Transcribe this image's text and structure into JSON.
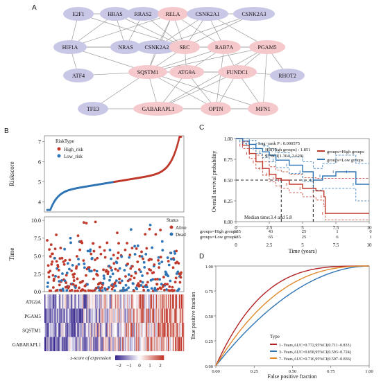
{
  "panel_labels": {
    "a": "A",
    "b": "B",
    "c": "C",
    "d": "D"
  },
  "network": {
    "colors": {
      "lavender": "#c9c7e6",
      "pink": "#f5c8cc",
      "edge": "#9a9a9a"
    },
    "nodes": [
      {
        "id": "E2F1",
        "label": "E2F1",
        "color": "lavender"
      },
      {
        "id": "HRAS",
        "label": "HRAS",
        "color": "lavender"
      },
      {
        "id": "RRAS2",
        "label": "RRAS2",
        "color": "lavender"
      },
      {
        "id": "RELA",
        "label": "RELA",
        "color": "pink"
      },
      {
        "id": "CSNK2A1",
        "label": "CSNK2A1",
        "color": "lavender"
      },
      {
        "id": "CSNK2A3",
        "label": "CSNK2A3",
        "color": "lavender"
      },
      {
        "id": "HIF1A",
        "label": "HIF1A",
        "color": "lavender"
      },
      {
        "id": "NRAS",
        "label": "NRAS",
        "color": "lavender"
      },
      {
        "id": "CSNK2A2",
        "label": "CSNK2A2",
        "color": "lavender"
      },
      {
        "id": "SRC",
        "label": "SRC",
        "color": "pink"
      },
      {
        "id": "RAB7A",
        "label": "RAB7A",
        "color": "pink"
      },
      {
        "id": "PGAM5",
        "label": "PGAM5",
        "color": "pink"
      },
      {
        "id": "ATF4",
        "label": "ATF4",
        "color": "lavender"
      },
      {
        "id": "SQSTM1",
        "label": "SQSTM1",
        "color": "pink"
      },
      {
        "id": "ATG9A",
        "label": "ATG9A",
        "color": "pink"
      },
      {
        "id": "FUNDC1",
        "label": "FUNDC1",
        "color": "pink"
      },
      {
        "id": "RHOT2",
        "label": "RHOT2",
        "color": "lavender"
      },
      {
        "id": "TFE3",
        "label": "TFE3",
        "color": "lavender"
      },
      {
        "id": "GABARAPL1",
        "label": "GABARAPL1",
        "color": "pink"
      },
      {
        "id": "OPTN",
        "label": "OPTN",
        "color": "pink"
      },
      {
        "id": "MFN1",
        "label": "MFN1",
        "color": "pink"
      }
    ],
    "edges": [
      [
        "E2F1",
        "HIF1A"
      ],
      [
        "E2F1",
        "RELA"
      ],
      [
        "E2F1",
        "SRC"
      ],
      [
        "HRAS",
        "RRAS2"
      ],
      [
        "HRAS",
        "NRAS"
      ],
      [
        "HRAS",
        "SRC"
      ],
      [
        "HRAS",
        "RELA"
      ],
      [
        "HRAS",
        "HIF1A"
      ],
      [
        "RRAS2",
        "SRC"
      ],
      [
        "RRAS2",
        "NRAS"
      ],
      [
        "RELA",
        "CSNK2A1"
      ],
      [
        "RELA",
        "CSNK2A2"
      ],
      [
        "RELA",
        "SRC"
      ],
      [
        "RELA",
        "SQSTM1"
      ],
      [
        "RELA",
        "HIF1A"
      ],
      [
        "RELA",
        "RAB7A"
      ],
      [
        "CSNK2A1",
        "CSNK2A3"
      ],
      [
        "CSNK2A1",
        "CSNK2A2"
      ],
      [
        "CSNK2A1",
        "SRC"
      ],
      [
        "CSNK2A1",
        "RAB7A"
      ],
      [
        "CSNK2A1",
        "PGAM5"
      ],
      [
        "CSNK2A3",
        "CSNK2A2"
      ],
      [
        "CSNK2A3",
        "SRC"
      ],
      [
        "HIF1A",
        "NRAS"
      ],
      [
        "HIF1A",
        "SRC"
      ],
      [
        "HIF1A",
        "SQSTM1"
      ],
      [
        "HIF1A",
        "ATF4"
      ],
      [
        "HIF1A",
        "CSNK2A2"
      ],
      [
        "NRAS",
        "SRC"
      ],
      [
        "CSNK2A2",
        "SRC"
      ],
      [
        "CSNK2A2",
        "SQSTM1"
      ],
      [
        "SRC",
        "SQSTM1"
      ],
      [
        "SRC",
        "RAB7A"
      ],
      [
        "SRC",
        "PGAM5"
      ],
      [
        "SRC",
        "ATG9A"
      ],
      [
        "RAB7A",
        "PGAM5"
      ],
      [
        "RAB7A",
        "SQSTM1"
      ],
      [
        "RAB7A",
        "ATG9A"
      ],
      [
        "RAB7A",
        "FUNDC1"
      ],
      [
        "RAB7A",
        "OPTN"
      ],
      [
        "PGAM5",
        "SQSTM1"
      ],
      [
        "PGAM5",
        "FUNDC1"
      ],
      [
        "PGAM5",
        "RHOT2"
      ],
      [
        "PGAM5",
        "MFN1"
      ],
      [
        "PGAM5",
        "GABARAPL1"
      ],
      [
        "ATF4",
        "SQSTM1"
      ],
      [
        "SQSTM1",
        "ATG9A"
      ],
      [
        "SQSTM1",
        "FUNDC1"
      ],
      [
        "SQSTM1",
        "GABARAPL1"
      ],
      [
        "SQSTM1",
        "OPTN"
      ],
      [
        "SQSTM1",
        "TFE3"
      ],
      [
        "SQSTM1",
        "MFN1"
      ],
      [
        "ATG9A",
        "FUNDC1"
      ],
      [
        "ATG9A",
        "GABARAPL1"
      ],
      [
        "ATG9A",
        "OPTN"
      ],
      [
        "FUNDC1",
        "GABARAPL1"
      ],
      [
        "FUNDC1",
        "OPTN"
      ],
      [
        "FUNDC1",
        "MFN1"
      ],
      [
        "FUNDC1",
        "RHOT2"
      ],
      [
        "TFE3",
        "GABARAPL1"
      ],
      [
        "GABARAPL1",
        "OPTN"
      ],
      [
        "GABARAPL1",
        "MFN1"
      ],
      [
        "OPTN",
        "MFN1"
      ]
    ]
  },
  "chart_data": [
    {
      "type": "scatter",
      "panel": "B-top",
      "ylabel": "Riskscore",
      "ylim": [
        3.5,
        7.3
      ],
      "yticks": [
        4,
        5,
        6,
        7
      ],
      "legend_title": "RiskType",
      "legend_position": "top-left",
      "series": [
        {
          "name": "High_risk",
          "color": "#c0392b",
          "shape": "sigmoid-upper",
          "n": 185,
          "y_start": 5.0,
          "y_end": 7.2
        },
        {
          "name": "Low_risk",
          "color": "#2e75b6",
          "shape": "sigmoid-lower",
          "n": 185,
          "y_start": 3.65,
          "y_end": 5.0
        }
      ]
    },
    {
      "type": "scatter",
      "panel": "B-middle",
      "ylabel": "Time",
      "ylim": [
        0,
        10.5
      ],
      "yticks": [
        "0.0",
        "2.5",
        "5.0",
        "7.5",
        "10.0"
      ],
      "legend_title": "Status",
      "legend_position": "top-right",
      "series": [
        {
          "name": "Alive",
          "color": "#c0392b"
        },
        {
          "name": "Dead",
          "color": "#2e75b6"
        }
      ]
    },
    {
      "type": "heatmap",
      "panel": "B-bottom",
      "rows": [
        "ATG9A",
        "PGAM5",
        "SQSTM1",
        "GABARAPL1"
      ],
      "colorbar_title": "z-score of expression",
      "colorbar_ticks": [
        "−2",
        "−1",
        "0",
        "1",
        "2"
      ],
      "low_color": "#3b2a8f",
      "mid_color": "#ffffff",
      "high_color": "#c0392b"
    },
    {
      "type": "line",
      "panel": "C",
      "ylabel": "Overall survival probability",
      "xlabel": "Time (years)",
      "xticks": [
        "0",
        "2.5",
        "5",
        "7.5",
        "10"
      ],
      "yticks": [
        "0.00",
        "0.25",
        "0.50",
        "0.75",
        "1.00"
      ],
      "xlim": [
        0,
        10
      ],
      "ylim": [
        0,
        1
      ],
      "annotations": [
        "Log−rank P : 0.000575",
        "HR(High groups) : 1.851",
        "95%CI(1.304, 2.629)"
      ],
      "median_label": "Median time:3.4 and 5.8",
      "medians": [
        3.4,
        5.8
      ],
      "series": [
        {
          "name": "groups=High groups",
          "color": "#c0392b",
          "x": [
            0,
            0.5,
            1,
            1.5,
            2,
            2.5,
            3,
            3.4,
            4,
            5,
            6,
            6.6,
            6.7,
            10
          ],
          "y": [
            1,
            0.92,
            0.82,
            0.72,
            0.64,
            0.57,
            0.52,
            0.5,
            0.45,
            0.4,
            0.37,
            0.3,
            0.1,
            0.1
          ],
          "ci_low": [
            1,
            0.88,
            0.76,
            0.64,
            0.56,
            0.48,
            0.43,
            0.4,
            0.35,
            0.3,
            0.26,
            0.18,
            0.02,
            0.02
          ],
          "ci_high": [
            1,
            0.96,
            0.88,
            0.8,
            0.72,
            0.66,
            0.62,
            0.6,
            0.57,
            0.53,
            0.52,
            0.52,
            0.52,
            0.52
          ]
        },
        {
          "name": "groups=Low groups",
          "color": "#2e75b6",
          "x": [
            0,
            0.5,
            1,
            1.5,
            2,
            2.5,
            3,
            4,
            5,
            5.8,
            6.5,
            7.5,
            8.5,
            9,
            10
          ],
          "y": [
            1,
            0.97,
            0.93,
            0.88,
            0.84,
            0.8,
            0.74,
            0.68,
            0.6,
            0.5,
            0.55,
            0.6,
            0.6,
            0.45,
            0.45
          ],
          "ci_low": [
            1,
            0.94,
            0.88,
            0.82,
            0.77,
            0.72,
            0.65,
            0.58,
            0.48,
            0.38,
            0.4,
            0.4,
            0.4,
            0.25,
            0.25
          ],
          "ci_high": [
            1,
            1,
            0.98,
            0.94,
            0.91,
            0.88,
            0.83,
            0.78,
            0.72,
            0.64,
            0.7,
            0.8,
            0.8,
            0.7,
            0.7
          ]
        }
      ],
      "risk_table": {
        "times": [
          "0",
          "2.5",
          "5",
          "7.5",
          "10"
        ],
        "rows": [
          {
            "label": "groups=High groups",
            "values": [
              "185",
              "43",
              "25",
              "1",
              "0"
            ]
          },
          {
            "label": "groups=Low groups",
            "values": [
              "185",
              "65",
              "25",
              "6",
              "1"
            ]
          }
        ]
      }
    },
    {
      "type": "line",
      "panel": "D",
      "xlabel": "False positive fraction",
      "ylabel": "True positive fraction",
      "xticks": [
        "0.00",
        "0.25",
        "0.50",
        "0.75",
        "1.00"
      ],
      "yticks": [
        "0.00",
        "0.25",
        "0.50",
        "0.75",
        "1.00"
      ],
      "xlim": [
        0,
        1
      ],
      "ylim": [
        0,
        1
      ],
      "legend_title": "Type",
      "legend_position": "bottom-right",
      "series": [
        {
          "name": "1−Years,AUC=0.772,95%CI(0.711−0.833)",
          "color": "#b22222",
          "auc": 0.772
        },
        {
          "name": "3−Years,AUC=0.658,95%CI(0.593−0.724)",
          "color": "#2e75b6",
          "auc": 0.658
        },
        {
          "name": "7−Years,AUC=0.716,95%CI(0.597−0.836)",
          "color": "#e08a2c",
          "auc": 0.716
        }
      ]
    }
  ]
}
